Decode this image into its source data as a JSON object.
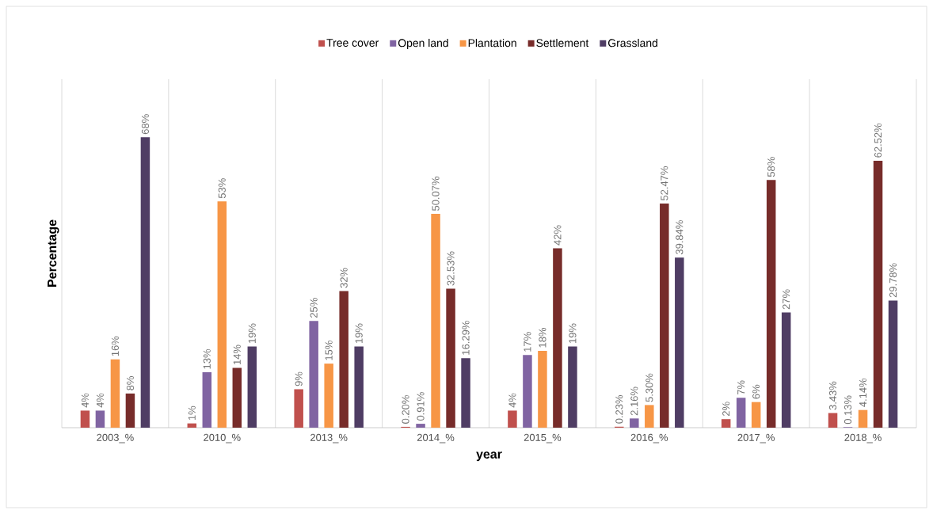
{
  "chart_data": {
    "type": "bar",
    "xlabel": "year",
    "ylabel": "Percentage",
    "categories": [
      "2003_%",
      "2010_%",
      "2013_%",
      "2014_%",
      "2015_%",
      "2016_%",
      "2017_%",
      "2018_%"
    ],
    "series": [
      {
        "name": "Tree cover",
        "color": "#c0504d",
        "values": [
          4,
          1,
          9,
          0.2,
          4,
          0.23,
          2,
          3.43
        ],
        "value_labels": [
          "4%",
          "1%",
          "9%",
          "0.20%",
          "4%",
          "0.23%",
          "2%",
          "3.43%"
        ]
      },
      {
        "name": "Open land",
        "color": "#8064a2",
        "values": [
          4,
          13,
          25,
          0.91,
          17,
          2.16,
          7,
          0.13
        ],
        "value_labels": [
          "4%",
          "13%",
          "25%",
          "0.91%",
          "17%",
          "2.16%",
          "7%",
          "0.13%"
        ]
      },
      {
        "name": "Plantation",
        "color": "#f79646",
        "values": [
          16,
          53,
          15,
          50.07,
          18,
          5.3,
          6,
          4.14
        ],
        "value_labels": [
          "16%",
          "53%",
          "15%",
          "50.07%",
          "18%",
          "5.30%",
          "6%",
          "4.14%"
        ]
      },
      {
        "name": "Settlement",
        "color": "#772c2a",
        "values": [
          8,
          14,
          32,
          32.53,
          42,
          52.47,
          58,
          62.52
        ],
        "value_labels": [
          "8%",
          "14%",
          "32%",
          "32.53%",
          "42%",
          "52.47%",
          "58%",
          "62.52%"
        ]
      },
      {
        "name": "Grassland",
        "color": "#4f3d64",
        "values": [
          68,
          19,
          19,
          16.29,
          19,
          39.84,
          27,
          29.78
        ],
        "value_labels": [
          "68%",
          "19%",
          "19%",
          "16.29%",
          "19%",
          "39.84%",
          "27%",
          "29.78%"
        ]
      }
    ],
    "grid": "x",
    "legend": "top"
  }
}
